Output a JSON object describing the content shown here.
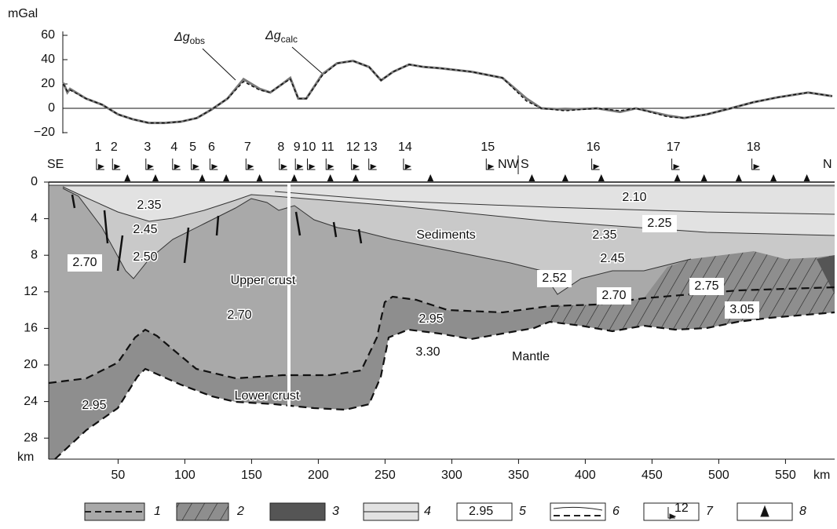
{
  "chart_data": {
    "type": "line",
    "y_label": "mGal",
    "symbol": "Δg",
    "x": [
      9,
      12,
      14,
      26,
      38,
      50,
      61,
      73,
      85,
      97,
      109,
      120,
      132,
      144,
      156,
      164,
      173,
      179,
      185,
      191,
      203,
      214,
      226,
      238,
      247,
      256,
      268,
      279,
      291,
      315,
      338,
      356,
      367,
      385,
      409,
      426,
      438,
      462,
      474,
      491,
      509,
      526,
      544,
      567,
      585
    ],
    "series": [
      {
        "name": "obs",
        "color": "#7a7a7a",
        "values": [
          21,
          13,
          16,
          8,
          3,
          -5,
          -9,
          -12,
          -12,
          -11,
          -8,
          -1,
          8,
          24,
          16,
          13,
          20,
          25,
          8,
          8,
          28,
          37,
          39,
          34,
          23,
          30,
          36,
          34,
          33,
          30,
          25,
          8,
          0,
          -1,
          0,
          -3,
          0,
          -6,
          -8,
          -5,
          0,
          5,
          9,
          13,
          10
        ]
      },
      {
        "name": "calc",
        "color": "#111111",
        "values": [
          20,
          14,
          15,
          8,
          3,
          -5,
          -9,
          -12,
          -12,
          -11,
          -8,
          -1,
          8,
          22,
          15,
          13,
          20,
          24,
          8,
          8,
          27,
          37,
          39,
          34,
          23,
          30,
          36,
          34,
          33,
          30,
          25,
          6,
          0,
          -2,
          0,
          -2,
          0,
          -7,
          -8,
          -5,
          0,
          5,
          9,
          13,
          10
        ]
      }
    ],
    "xlim": [
      -2,
      588
    ],
    "ylim": [
      -20,
      60
    ],
    "yticks": [
      {
        "value": -20,
        "label": "−20"
      },
      0,
      20,
      40,
      60
    ]
  },
  "section": {
    "xlim": [
      -2,
      588
    ],
    "xticks": [
      50,
      100,
      150,
      200,
      250,
      300,
      350,
      400,
      450,
      500,
      550
    ],
    "x_unit": "km",
    "ylim": [
      0,
      30.3
    ],
    "yticks": [
      0,
      4,
      8,
      12,
      16,
      20,
      24,
      28
    ],
    "y_unit": "km",
    "ends": [
      "SE",
      "NW",
      "S",
      "N"
    ],
    "stations": {
      "labels": [
        "1",
        "2",
        "3",
        "4",
        "5",
        "6",
        "7",
        "8",
        "9",
        "10",
        "11",
        "12",
        "13",
        "14",
        "15",
        "16",
        "17",
        "18"
      ],
      "x": [
        35,
        47,
        72,
        92,
        106,
        120,
        147,
        172,
        184,
        193,
        207,
        226,
        239,
        265,
        327,
        406,
        466,
        526
      ]
    },
    "triangles_x": [
      57,
      78,
      113,
      131,
      156,
      182,
      209,
      228,
      284,
      360,
      385,
      412,
      469,
      489,
      515,
      541,
      566
    ],
    "densities": [
      "2.35",
      "2.45",
      "2.50",
      "2.70",
      "2.70",
      "2.95",
      "2.95",
      "3.30",
      "2.52",
      "2.10",
      "2.25",
      "2.35",
      "2.45",
      "2.70",
      "2.75",
      "3.05"
    ],
    "names": [
      "Sediments",
      "Upper crust",
      "Lower crust",
      "Mantle"
    ]
  },
  "legend": {
    "items": [
      "1",
      "2",
      "3",
      "4",
      "5",
      "6",
      "7",
      "8"
    ],
    "box5": "2.95",
    "box7": "12"
  }
}
